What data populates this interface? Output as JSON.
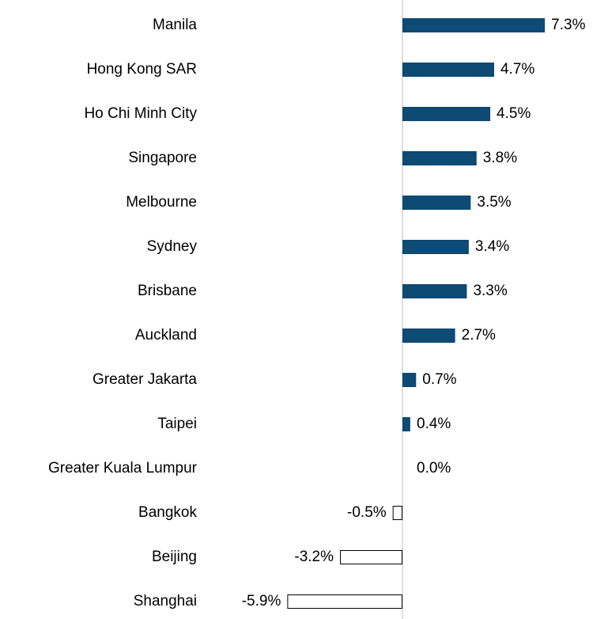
{
  "chart_data": {
    "type": "bar",
    "orientation": "horizontal",
    "categories": [
      "Manila",
      "Hong Kong SAR",
      "Ho Chi Minh City",
      "Singapore",
      "Melbourne",
      "Sydney",
      "Brisbane",
      "Auckland",
      "Greater Jakarta",
      "Taipei",
      "Greater Kuala Lumpur",
      "Bangkok",
      "Beijing",
      "Shanghai"
    ],
    "values": [
      7.3,
      4.7,
      4.5,
      3.8,
      3.5,
      3.4,
      3.3,
      2.7,
      0.7,
      0.4,
      0.0,
      -0.5,
      -3.2,
      -5.9
    ],
    "value_labels": [
      "7.3%",
      "4.7%",
      "4.5%",
      "3.8%",
      "3.5%",
      "3.4%",
      "3.3%",
      "2.7%",
      "0.7%",
      "0.4%",
      "0.0%",
      "-0.5%",
      "-3.2%",
      "-5.9%"
    ],
    "color": "#0d4a74",
    "negative_fill": "#ffffff",
    "negative_stroke": "#000000"
  }
}
